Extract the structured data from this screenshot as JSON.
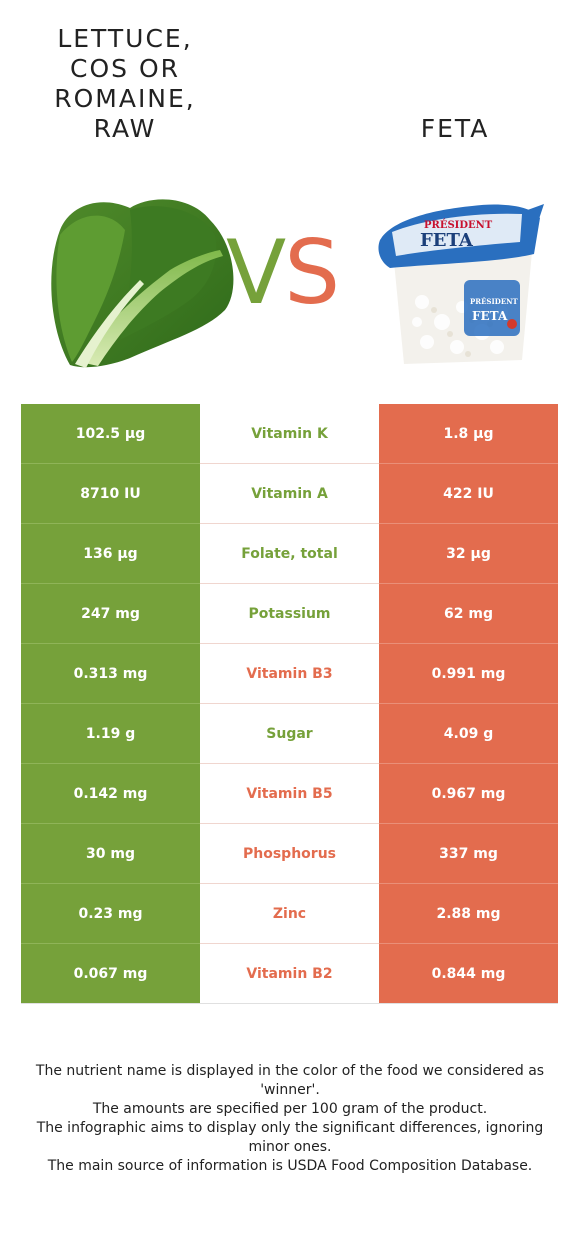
{
  "left_food": {
    "title": "LETTUCE,\nCOS OR\nROMAINE,\nRAW",
    "image": "romaine-lettuce-image"
  },
  "right_food": {
    "title": "FETA",
    "image": "feta-cheese-container-image"
  },
  "vs": {
    "v": "V",
    "s": "S"
  },
  "colors": {
    "left": "#76a13a",
    "right": "#e36c4e"
  },
  "rows": [
    {
      "left": "102.5 µg",
      "nutrient": "Vitamin K",
      "right": "1.8 µg",
      "winner": "left"
    },
    {
      "left": "8710 IU",
      "nutrient": "Vitamin A",
      "right": "422 IU",
      "winner": "left"
    },
    {
      "left": "136 µg",
      "nutrient": "Folate, total",
      "right": "32 µg",
      "winner": "left"
    },
    {
      "left": "247 mg",
      "nutrient": "Potassium",
      "right": "62 mg",
      "winner": "left"
    },
    {
      "left": "0.313 mg",
      "nutrient": "Vitamin B3",
      "right": "0.991 mg",
      "winner": "right"
    },
    {
      "left": "1.19 g",
      "nutrient": "Sugar",
      "right": "4.09 g",
      "winner": "left"
    },
    {
      "left": "0.142 mg",
      "nutrient": "Vitamin B5",
      "right": "0.967 mg",
      "winner": "right"
    },
    {
      "left": "30 mg",
      "nutrient": "Phosphorus",
      "right": "337 mg",
      "winner": "right"
    },
    {
      "left": "0.23 mg",
      "nutrient": "Zinc",
      "right": "2.88 mg",
      "winner": "right"
    },
    {
      "left": "0.067 mg",
      "nutrient": "Vitamin B2",
      "right": "0.844 mg",
      "winner": "right"
    }
  ],
  "footer": [
    "The nutrient name is displayed in the color of the food we considered as 'winner'.",
    "The amounts are specified per 100 gram of the product.",
    "The infographic aims to display only the significant differences, ignoring minor ones.",
    "The main source of information is USDA Food Composition Database."
  ]
}
